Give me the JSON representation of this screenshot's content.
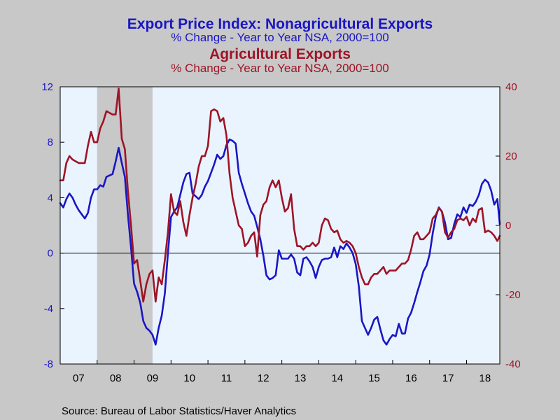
{
  "chart_data": {
    "type": "line",
    "title": "Export Price Index: Nonagricultural Exports",
    "subtitle": "% Change - Year to Year    NSA, 2000=100",
    "title2": "Agricultural Exports",
    "subtitle2": "% Change - Year to Year    NSA, 2000=100",
    "source": "Source:  Bureau of Labor Statistics/Haver Analytics",
    "x_tick_labels": [
      "07",
      "08",
      "09",
      "10",
      "11",
      "12",
      "13",
      "14",
      "15",
      "16",
      "17",
      "18"
    ],
    "x_range": [
      2007.0,
      2018.9
    ],
    "left_axis": {
      "ylim": [
        -8,
        12
      ],
      "ticks": [
        -8,
        -4,
        0,
        4,
        8,
        12
      ]
    },
    "right_axis": {
      "ylim": [
        -40,
        40
      ],
      "ticks": [
        -40,
        -20,
        0,
        20,
        40
      ]
    },
    "recession": {
      "start": 2008.0,
      "end": 2009.5
    },
    "zero_line": 0,
    "colors": {
      "nonag": "#1a16c4",
      "ag": "#9e1426",
      "plot_bg": "#eaf4ff",
      "recession": "#c8c8c8",
      "page_bg": "#c8c8c8"
    },
    "series": [
      {
        "axis": "left",
        "color": "#1a16c4",
        "points": [
          [
            2007.0,
            3.6
          ],
          [
            2007.083,
            3.3
          ],
          [
            2007.167,
            3.9
          ],
          [
            2007.25,
            4.3
          ],
          [
            2007.333,
            4.0
          ],
          [
            2007.417,
            3.5
          ],
          [
            2007.5,
            3.1
          ],
          [
            2007.583,
            2.8
          ],
          [
            2007.667,
            2.5
          ],
          [
            2007.75,
            2.9
          ],
          [
            2007.833,
            4.0
          ],
          [
            2007.917,
            4.6
          ],
          [
            2008.0,
            4.6
          ],
          [
            2008.083,
            4.9
          ],
          [
            2008.167,
            4.8
          ],
          [
            2008.25,
            5.5
          ],
          [
            2008.333,
            5.6
          ],
          [
            2008.417,
            5.7
          ],
          [
            2008.5,
            6.6
          ],
          [
            2008.583,
            7.6
          ],
          [
            2008.667,
            6.5
          ],
          [
            2008.75,
            5.5
          ],
          [
            2008.833,
            2.8
          ],
          [
            2008.917,
            0.4
          ],
          [
            2009.0,
            -2.2
          ],
          [
            2009.083,
            -2.8
          ],
          [
            2009.167,
            -3.6
          ],
          [
            2009.25,
            -4.9
          ],
          [
            2009.333,
            -5.4
          ],
          [
            2009.417,
            -5.6
          ],
          [
            2009.5,
            -5.9
          ],
          [
            2009.583,
            -6.6
          ],
          [
            2009.667,
            -5.4
          ],
          [
            2009.75,
            -4.5
          ],
          [
            2009.833,
            -2.9
          ],
          [
            2009.917,
            0.0
          ],
          [
            2010.0,
            2.6
          ],
          [
            2010.083,
            3.0
          ],
          [
            2010.167,
            3.3
          ],
          [
            2010.25,
            4.2
          ],
          [
            2010.333,
            5.1
          ],
          [
            2010.417,
            5.7
          ],
          [
            2010.5,
            5.8
          ],
          [
            2010.583,
            4.3
          ],
          [
            2010.667,
            4.1
          ],
          [
            2010.75,
            3.9
          ],
          [
            2010.833,
            4.2
          ],
          [
            2010.917,
            4.8
          ],
          [
            2011.0,
            5.2
          ],
          [
            2011.083,
            5.8
          ],
          [
            2011.167,
            6.4
          ],
          [
            2011.25,
            7.1
          ],
          [
            2011.333,
            6.8
          ],
          [
            2011.417,
            7.0
          ],
          [
            2011.5,
            7.8
          ],
          [
            2011.583,
            8.2
          ],
          [
            2011.667,
            8.1
          ],
          [
            2011.75,
            7.9
          ],
          [
            2011.833,
            5.8
          ],
          [
            2011.917,
            5.0
          ],
          [
            2012.0,
            4.3
          ],
          [
            2012.083,
            3.6
          ],
          [
            2012.167,
            3.0
          ],
          [
            2012.25,
            2.7
          ],
          [
            2012.333,
            1.9
          ],
          [
            2012.417,
            1.0
          ],
          [
            2012.5,
            -0.2
          ],
          [
            2012.583,
            -1.6
          ],
          [
            2012.667,
            -1.9
          ],
          [
            2012.75,
            -1.8
          ],
          [
            2012.833,
            -1.6
          ],
          [
            2012.917,
            0.2
          ],
          [
            2013.0,
            -0.4
          ],
          [
            2013.083,
            -0.4
          ],
          [
            2013.167,
            -0.4
          ],
          [
            2013.25,
            -0.1
          ],
          [
            2013.333,
            -0.4
          ],
          [
            2013.417,
            -1.4
          ],
          [
            2013.5,
            -1.6
          ],
          [
            2013.583,
            -0.4
          ],
          [
            2013.667,
            -0.3
          ],
          [
            2013.75,
            -0.6
          ],
          [
            2013.833,
            -1.0
          ],
          [
            2013.917,
            -1.8
          ],
          [
            2014.0,
            -1.0
          ],
          [
            2014.083,
            -0.5
          ],
          [
            2014.167,
            -0.4
          ],
          [
            2014.25,
            -0.4
          ],
          [
            2014.333,
            -0.3
          ],
          [
            2014.417,
            0.4
          ],
          [
            2014.5,
            -0.3
          ],
          [
            2014.583,
            0.5
          ],
          [
            2014.667,
            0.3
          ],
          [
            2014.75,
            0.7
          ],
          [
            2014.833,
            0.4
          ],
          [
            2014.917,
            0.0
          ],
          [
            2015.0,
            -0.8
          ],
          [
            2015.083,
            -2.4
          ],
          [
            2015.167,
            -4.9
          ],
          [
            2015.25,
            -5.4
          ],
          [
            2015.333,
            -5.9
          ],
          [
            2015.417,
            -5.4
          ],
          [
            2015.5,
            -4.8
          ],
          [
            2015.583,
            -4.6
          ],
          [
            2015.667,
            -5.5
          ],
          [
            2015.75,
            -6.3
          ],
          [
            2015.833,
            -6.6
          ],
          [
            2015.917,
            -6.2
          ],
          [
            2016.0,
            -5.9
          ],
          [
            2016.083,
            -6.0
          ],
          [
            2016.167,
            -5.1
          ],
          [
            2016.25,
            -5.8
          ],
          [
            2016.333,
            -5.8
          ],
          [
            2016.417,
            -4.7
          ],
          [
            2016.5,
            -4.3
          ],
          [
            2016.583,
            -3.6
          ],
          [
            2016.667,
            -2.8
          ],
          [
            2016.75,
            -2.1
          ],
          [
            2016.833,
            -1.3
          ],
          [
            2016.917,
            -0.9
          ],
          [
            2017.0,
            -0.1
          ],
          [
            2017.083,
            1.4
          ],
          [
            2017.167,
            2.6
          ],
          [
            2017.25,
            3.3
          ],
          [
            2017.333,
            3.0
          ],
          [
            2017.417,
            2.2
          ],
          [
            2017.5,
            1.0
          ],
          [
            2017.583,
            1.1
          ],
          [
            2017.667,
            2.1
          ],
          [
            2017.75,
            2.8
          ],
          [
            2017.833,
            2.6
          ],
          [
            2017.917,
            3.3
          ],
          [
            2018.0,
            2.9
          ],
          [
            2018.083,
            3.5
          ],
          [
            2018.167,
            3.4
          ],
          [
            2018.25,
            3.7
          ],
          [
            2018.333,
            4.2
          ],
          [
            2018.417,
            5.0
          ],
          [
            2018.5,
            5.3
          ],
          [
            2018.583,
            5.1
          ],
          [
            2018.667,
            4.5
          ],
          [
            2018.75,
            3.5
          ],
          [
            2018.833,
            3.9
          ],
          [
            2018.9,
            2.1
          ]
        ]
      },
      {
        "axis": "right",
        "color": "#9e1426",
        "points": [
          [
            2007.0,
            13
          ],
          [
            2007.083,
            13
          ],
          [
            2007.167,
            18
          ],
          [
            2007.25,
            20
          ],
          [
            2007.333,
            19
          ],
          [
            2007.417,
            18.5
          ],
          [
            2007.5,
            18
          ],
          [
            2007.583,
            18
          ],
          [
            2007.667,
            18
          ],
          [
            2007.75,
            23
          ],
          [
            2007.833,
            27
          ],
          [
            2007.917,
            24
          ],
          [
            2008.0,
            24
          ],
          [
            2008.083,
            28
          ],
          [
            2008.167,
            30
          ],
          [
            2008.25,
            33
          ],
          [
            2008.333,
            32.5
          ],
          [
            2008.417,
            32
          ],
          [
            2008.5,
            32
          ],
          [
            2008.583,
            39.5
          ],
          [
            2008.667,
            25
          ],
          [
            2008.75,
            22
          ],
          [
            2008.833,
            10
          ],
          [
            2008.917,
            0
          ],
          [
            2009.0,
            -11
          ],
          [
            2009.083,
            -10
          ],
          [
            2009.167,
            -16
          ],
          [
            2009.25,
            -22
          ],
          [
            2009.333,
            -17
          ],
          [
            2009.417,
            -14
          ],
          [
            2009.5,
            -13
          ],
          [
            2009.583,
            -22
          ],
          [
            2009.667,
            -15
          ],
          [
            2009.75,
            -17
          ],
          [
            2009.833,
            -10
          ],
          [
            2009.917,
            -2
          ],
          [
            2010.0,
            9
          ],
          [
            2010.083,
            4
          ],
          [
            2010.167,
            3
          ],
          [
            2010.25,
            7
          ],
          [
            2010.333,
            1
          ],
          [
            2010.417,
            -3
          ],
          [
            2010.5,
            3
          ],
          [
            2010.583,
            8
          ],
          [
            2010.667,
            12
          ],
          [
            2010.75,
            17
          ],
          [
            2010.833,
            20
          ],
          [
            2010.917,
            20
          ],
          [
            2011.0,
            23
          ],
          [
            2011.083,
            33
          ],
          [
            2011.167,
            33.5
          ],
          [
            2011.25,
            33
          ],
          [
            2011.333,
            30
          ],
          [
            2011.417,
            31
          ],
          [
            2011.5,
            26
          ],
          [
            2011.583,
            15
          ],
          [
            2011.667,
            8
          ],
          [
            2011.75,
            4
          ],
          [
            2011.833,
            0
          ],
          [
            2011.917,
            -1
          ],
          [
            2012.0,
            -6
          ],
          [
            2012.083,
            -5
          ],
          [
            2012.167,
            -3
          ],
          [
            2012.25,
            -2
          ],
          [
            2012.333,
            -9
          ],
          [
            2012.417,
            3
          ],
          [
            2012.5,
            6
          ],
          [
            2012.583,
            7
          ],
          [
            2012.667,
            11
          ],
          [
            2012.75,
            13
          ],
          [
            2012.833,
            11
          ],
          [
            2012.917,
            13
          ],
          [
            2013.0,
            8
          ],
          [
            2013.083,
            4
          ],
          [
            2013.167,
            5
          ],
          [
            2013.25,
            9
          ],
          [
            2013.333,
            -1
          ],
          [
            2013.417,
            -6
          ],
          [
            2013.5,
            -6
          ],
          [
            2013.583,
            -7
          ],
          [
            2013.667,
            -6
          ],
          [
            2013.75,
            -6
          ],
          [
            2013.833,
            -5
          ],
          [
            2013.917,
            -6
          ],
          [
            2014.0,
            -5
          ],
          [
            2014.083,
            0
          ],
          [
            2014.167,
            2
          ],
          [
            2014.25,
            1.5
          ],
          [
            2014.333,
            -1
          ],
          [
            2014.417,
            -2
          ],
          [
            2014.5,
            -1.5
          ],
          [
            2014.583,
            -4
          ],
          [
            2014.667,
            -5
          ],
          [
            2014.75,
            -4.5
          ],
          [
            2014.833,
            -5
          ],
          [
            2014.917,
            -6
          ],
          [
            2015.0,
            -8
          ],
          [
            2015.083,
            -12
          ],
          [
            2015.167,
            -15
          ],
          [
            2015.25,
            -17
          ],
          [
            2015.333,
            -17
          ],
          [
            2015.417,
            -15
          ],
          [
            2015.5,
            -14
          ],
          [
            2015.583,
            -14
          ],
          [
            2015.667,
            -13
          ],
          [
            2015.75,
            -12
          ],
          [
            2015.833,
            -14
          ],
          [
            2015.917,
            -13
          ],
          [
            2016.0,
            -13
          ],
          [
            2016.083,
            -13
          ],
          [
            2016.167,
            -12
          ],
          [
            2016.25,
            -11
          ],
          [
            2016.333,
            -11
          ],
          [
            2016.417,
            -10
          ],
          [
            2016.5,
            -7
          ],
          [
            2016.583,
            -3
          ],
          [
            2016.667,
            -2
          ],
          [
            2016.75,
            -4
          ],
          [
            2016.833,
            -4
          ],
          [
            2016.917,
            -3
          ],
          [
            2017.0,
            -2
          ],
          [
            2017.083,
            2
          ],
          [
            2017.167,
            3
          ],
          [
            2017.25,
            5
          ],
          [
            2017.333,
            4
          ],
          [
            2017.417,
            -2
          ],
          [
            2017.5,
            -3.5
          ],
          [
            2017.583,
            -2
          ],
          [
            2017.667,
            -1
          ],
          [
            2017.75,
            1.5
          ],
          [
            2017.833,
            2
          ],
          [
            2017.917,
            1.5
          ],
          [
            2018.0,
            2.5
          ],
          [
            2018.083,
            0
          ],
          [
            2018.167,
            2
          ],
          [
            2018.25,
            1
          ],
          [
            2018.333,
            4.5
          ],
          [
            2018.417,
            5
          ],
          [
            2018.5,
            -2
          ],
          [
            2018.583,
            -1.5
          ],
          [
            2018.667,
            -2
          ],
          [
            2018.75,
            -3
          ],
          [
            2018.833,
            -4.5
          ],
          [
            2018.9,
            -3
          ]
        ]
      }
    ]
  }
}
